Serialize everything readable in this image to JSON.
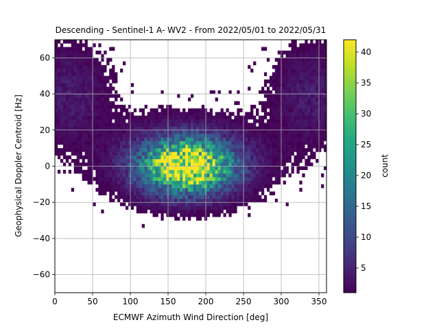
{
  "chart_data": {
    "type": "heatmap",
    "title": "Descending - Sentinel-1 A- WV2 - From 2022/05/01 to 2022/05/31",
    "xlabel": "ECMWF Azimuth Wind Direction [deg]",
    "ylabel": "Geophysical Doppler Centroid [Hz]",
    "xlim": [
      0,
      360
    ],
    "ylim": [
      -70,
      70
    ],
    "xticks": [
      0,
      50,
      100,
      150,
      200,
      250,
      300,
      350
    ],
    "yticks": [
      -60,
      -40,
      -20,
      0,
      20,
      40,
      60
    ],
    "grid": true,
    "colorbar": {
      "label": "count",
      "min": 1,
      "max": 42,
      "ticks": [
        5,
        10,
        15,
        20,
        25,
        30,
        35,
        40
      ],
      "colormap": "viridis"
    },
    "bin_width_x_deg": 3.6,
    "bin_height_y_hz": 2.0,
    "density_description_note_free": [
      {
        "x": 175,
        "y": 0,
        "sx": 40,
        "sy": 10,
        "peak": 42
      },
      {
        "x": 20,
        "y": 40,
        "sx": 35,
        "sy": 18,
        "peak": 4
      },
      {
        "x": 340,
        "y": 40,
        "sx": 35,
        "sy": 18,
        "peak": 4
      }
    ]
  }
}
